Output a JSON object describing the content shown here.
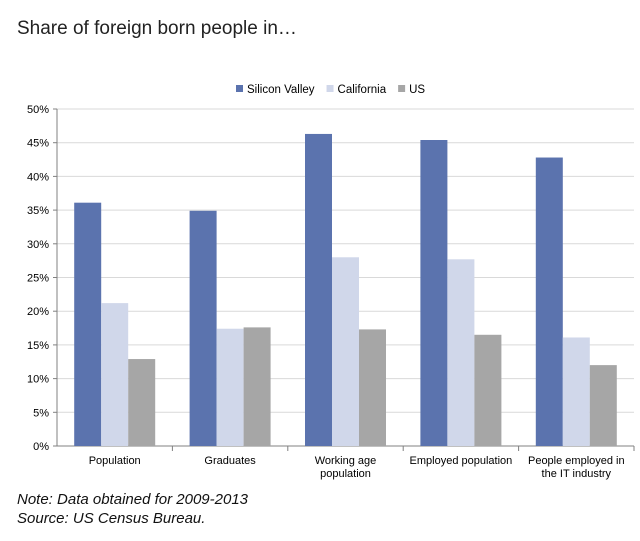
{
  "chart_data": {
    "type": "bar",
    "title": "Share of foreign born people in…",
    "categories": [
      [
        "Population"
      ],
      [
        "Graduates"
      ],
      [
        "Working age",
        "population"
      ],
      [
        "Employed population"
      ],
      [
        "People employed in",
        "the IT industry"
      ]
    ],
    "series": [
      {
        "name": "Silicon Valley",
        "color": "#5B73AE",
        "values": [
          36.1,
          34.9,
          46.3,
          45.4,
          42.8
        ]
      },
      {
        "name": "California",
        "color": "#D0D7EA",
        "values": [
          21.2,
          17.4,
          28.0,
          27.7,
          16.1
        ]
      },
      {
        "name": "US",
        "color": "#A6A6A6",
        "values": [
          12.9,
          17.6,
          17.3,
          16.5,
          12.0
        ]
      }
    ],
    "ylim": [
      0,
      50
    ],
    "yticks": [
      "0%",
      "5%",
      "10%",
      "15%",
      "20%",
      "25%",
      "30%",
      "35%",
      "40%",
      "45%",
      "50%"
    ],
    "legend_position": "top",
    "grid": true,
    "xlabel": "",
    "ylabel": ""
  },
  "notes": {
    "note": "Note: Data obtained for 2009-2013",
    "source": "Source:  US Census Bureau."
  }
}
